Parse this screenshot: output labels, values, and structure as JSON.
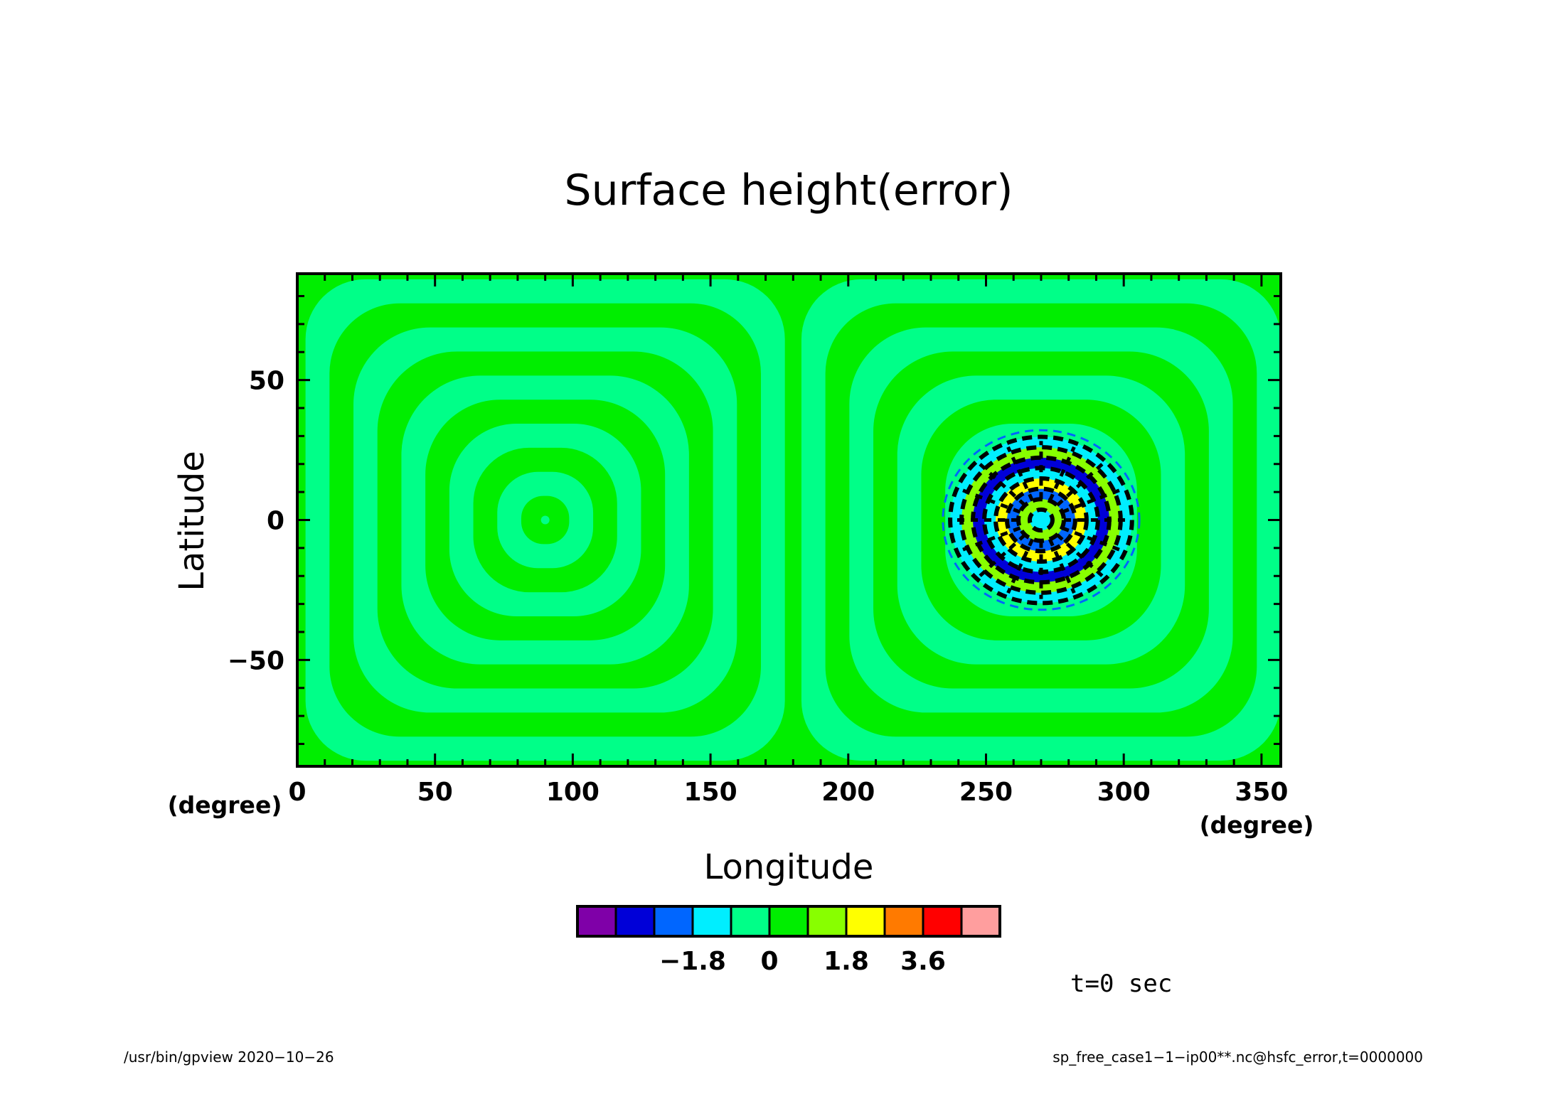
{
  "chart_data": {
    "type": "heatmap",
    "title": "Surface height(error)",
    "xlabel": "Longitude",
    "ylabel": "Latitude",
    "x_unit": "(degree)",
    "y_unit": "(degree)",
    "xlim": [
      0,
      357
    ],
    "ylim": [
      -88,
      88
    ],
    "xticks": [
      0,
      50,
      100,
      150,
      200,
      250,
      300,
      350
    ],
    "yticks": [
      -50,
      0,
      50
    ],
    "xtick_labels": [
      "0",
      "50",
      "100",
      "150",
      "200",
      "250",
      "300",
      "350"
    ],
    "ytick_labels": [
      "−50",
      "0",
      "50"
    ],
    "field": {
      "description_levels_used": "alternating bands between -0.9..0 and 0..0.9",
      "ring_centers": [
        [
          90,
          0
        ],
        [
          270,
          0
        ]
      ],
      "ring_spacing_deg": 9,
      "error_blob": {
        "center": [
          270,
          0
        ],
        "radius_deg": 33
      }
    },
    "colorbar": {
      "colors": [
        "#7f00a8",
        "#0000d8",
        "#0066ff",
        "#00eeff",
        "#00ff88",
        "#00ee00",
        "#88ff00",
        "#ffff00",
        "#ff7a00",
        "#ff0000",
        "#ff9e9e"
      ],
      "boundaries": [
        -4.5,
        -3.6,
        -2.7,
        -1.8,
        -0.9,
        0,
        0.9,
        1.8,
        2.7,
        3.6,
        4.5,
        5.4
      ],
      "tick_values": [
        -1.8,
        0,
        1.8,
        3.6
      ],
      "tick_labels": [
        "−1.8",
        "0",
        "1.8",
        "3.6"
      ]
    },
    "annotation_time": "t=0 sec",
    "grid": false,
    "legend": "colorbar-bottom"
  },
  "footer": {
    "left": "/usr/bin/gpview   2020−10−26",
    "right": "sp_free_case1−1−ip00**.nc@hsfc_error,t=0000000"
  }
}
